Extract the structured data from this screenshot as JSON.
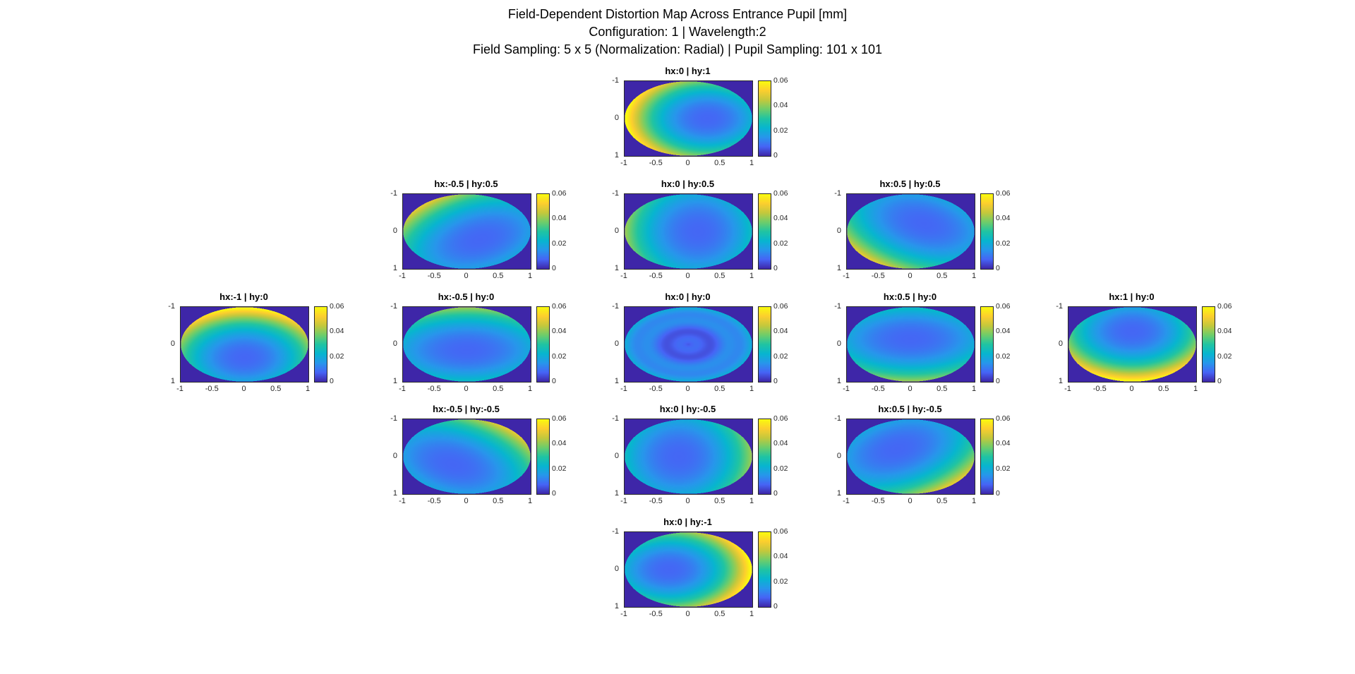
{
  "figure": {
    "title_lines": [
      "Field-Dependent Distortion Map Across Entrance Pupil [mm]",
      "Configuration: 1 | Wavelength:2",
      "Field Sampling: 5 x 5 (Normalization: Radial) | Pupil Sampling: 101 x 101"
    ]
  },
  "chart_data": {
    "type": "heatmap",
    "description": "13 distortion-magnitude maps over the unit entrance pupil, one per normalized field point (hx,hy), arranged in a 5x5 cross layout. Dark blue = low distortion, yellow = high distortion. Background outside unit pupil is colormap minimum.",
    "colormap": "parula",
    "color_axis": {
      "min": 0,
      "max": 0.06,
      "tick_labels": [
        "0",
        "0.02",
        "0.04",
        "0.06"
      ]
    },
    "x_axis": {
      "range": [
        -1,
        1
      ],
      "tick_labels": [
        "-1",
        "-0.5",
        "0",
        "0.5",
        "1"
      ]
    },
    "y_axis": {
      "range": [
        -1,
        1
      ],
      "tick_labels": [
        "-1",
        "0",
        "1"
      ],
      "inverted": true
    },
    "subplots": [
      {
        "title": "hx:0 | hy:1",
        "row": 0,
        "col": 2,
        "hx": 0,
        "hy": 1,
        "min_point": [
          0.3,
          0
        ],
        "peak": 0.062,
        "band": false,
        "rings": false
      },
      {
        "title": "hx:-0.5 | hy:0.5",
        "row": 1,
        "col": 1,
        "hx": -0.5,
        "hy": 0.5,
        "min_point": [
          0.21,
          0.21
        ],
        "peak": 0.05,
        "band": true,
        "rings": false
      },
      {
        "title": "hx:0 | hy:0.5",
        "row": 1,
        "col": 2,
        "hx": 0,
        "hy": 0.5,
        "min_point": [
          0.15,
          0
        ],
        "peak": 0.042,
        "band": true,
        "rings": false
      },
      {
        "title": "hx:0.5 | hy:0.5",
        "row": 1,
        "col": 3,
        "hx": 0.5,
        "hy": 0.5,
        "min_point": [
          0.21,
          -0.21
        ],
        "peak": 0.05,
        "band": true,
        "rings": false
      },
      {
        "title": "hx:-1 | hy:0",
        "row": 2,
        "col": 0,
        "hx": -1,
        "hy": 0,
        "min_point": [
          0,
          0.35
        ],
        "peak": 0.062,
        "band": false,
        "rings": false
      },
      {
        "title": "hx:-0.5 | hy:0",
        "row": 2,
        "col": 1,
        "hx": -0.5,
        "hy": 0,
        "min_point": [
          0,
          0.15
        ],
        "peak": 0.042,
        "band": true,
        "rings": false
      },
      {
        "title": "hx:0 | hy:0",
        "row": 2,
        "col": 2,
        "hx": 0,
        "hy": 0,
        "min_point": [
          0,
          0
        ],
        "peak": 0.02,
        "band": false,
        "rings": true
      },
      {
        "title": "hx:0.5 | hy:0",
        "row": 2,
        "col": 3,
        "hx": 0.5,
        "hy": 0,
        "min_point": [
          0,
          -0.15
        ],
        "peak": 0.042,
        "band": true,
        "rings": false
      },
      {
        "title": "hx:1 | hy:0",
        "row": 2,
        "col": 4,
        "hx": 1,
        "hy": 0,
        "min_point": [
          0,
          -0.35
        ],
        "peak": 0.062,
        "band": false,
        "rings": false
      },
      {
        "title": "hx:-0.5 | hy:-0.5",
        "row": 3,
        "col": 1,
        "hx": -0.5,
        "hy": -0.5,
        "min_point": [
          -0.21,
          0.21
        ],
        "peak": 0.05,
        "band": true,
        "rings": false
      },
      {
        "title": "hx:0 | hy:-0.5",
        "row": 3,
        "col": 2,
        "hx": 0,
        "hy": -0.5,
        "min_point": [
          -0.15,
          0
        ],
        "peak": 0.042,
        "band": true,
        "rings": false
      },
      {
        "title": "hx:0.5 | hy:-0.5",
        "row": 3,
        "col": 3,
        "hx": 0.5,
        "hy": -0.5,
        "min_point": [
          -0.21,
          -0.21
        ],
        "peak": 0.05,
        "band": true,
        "rings": false
      },
      {
        "title": "hx:0 | hy:-1",
        "row": 4,
        "col": 2,
        "hx": 0,
        "hy": -1,
        "min_point": [
          -0.3,
          0
        ],
        "peak": 0.062,
        "band": false,
        "rings": false
      }
    ],
    "parula_stops": [
      [
        0.0,
        "#3e26a8"
      ],
      [
        0.125,
        "#4664f5"
      ],
      [
        0.25,
        "#2796eb"
      ],
      [
        0.375,
        "#07b5cf"
      ],
      [
        0.5,
        "#20c4a2"
      ],
      [
        0.625,
        "#6ecd6a"
      ],
      [
        0.75,
        "#c4c83c"
      ],
      [
        0.875,
        "#fcce2e"
      ],
      [
        1.0,
        "#f9fb0e"
      ]
    ]
  }
}
